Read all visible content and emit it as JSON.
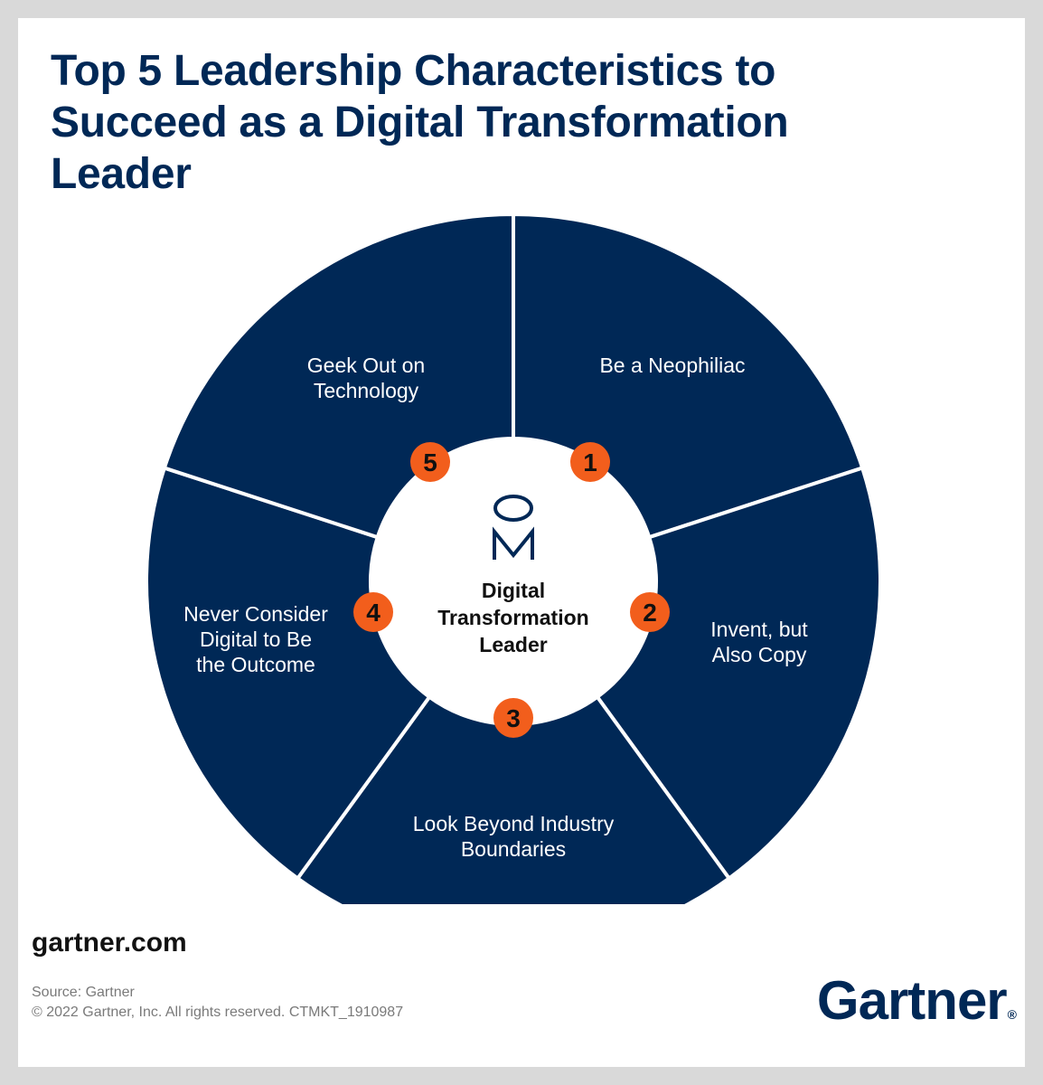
{
  "title": "Top 5 Leadership Characteristics to Succeed as a Digital Transformation Leader",
  "center": {
    "icon": "person-icon",
    "label_lines": [
      "Digital",
      "Transformation",
      "Leader"
    ]
  },
  "segments": [
    {
      "number": "1",
      "lines": [
        "Be a Neophiliac"
      ]
    },
    {
      "number": "2",
      "lines": [
        "Invent, but",
        "Also Copy"
      ]
    },
    {
      "number": "3",
      "lines": [
        "Look Beyond Industry",
        "Boundaries"
      ]
    },
    {
      "number": "4",
      "lines": [
        "Never Consider",
        "Digital to Be",
        "the Outcome"
      ]
    },
    {
      "number": "5",
      "lines": [
        "Geek Out on",
        "Technology"
      ]
    }
  ],
  "footer": {
    "link": "gartner.com",
    "source": "Source: Gartner",
    "copyright": "© 2022 Gartner, Inc. All rights reserved. CTMKT_1910987",
    "logo": "Gartner",
    "logo_mark": "®"
  },
  "colors": {
    "navy": "#002856",
    "orange": "#f25e1c",
    "background": "#d9d9d9",
    "card": "#ffffff"
  }
}
